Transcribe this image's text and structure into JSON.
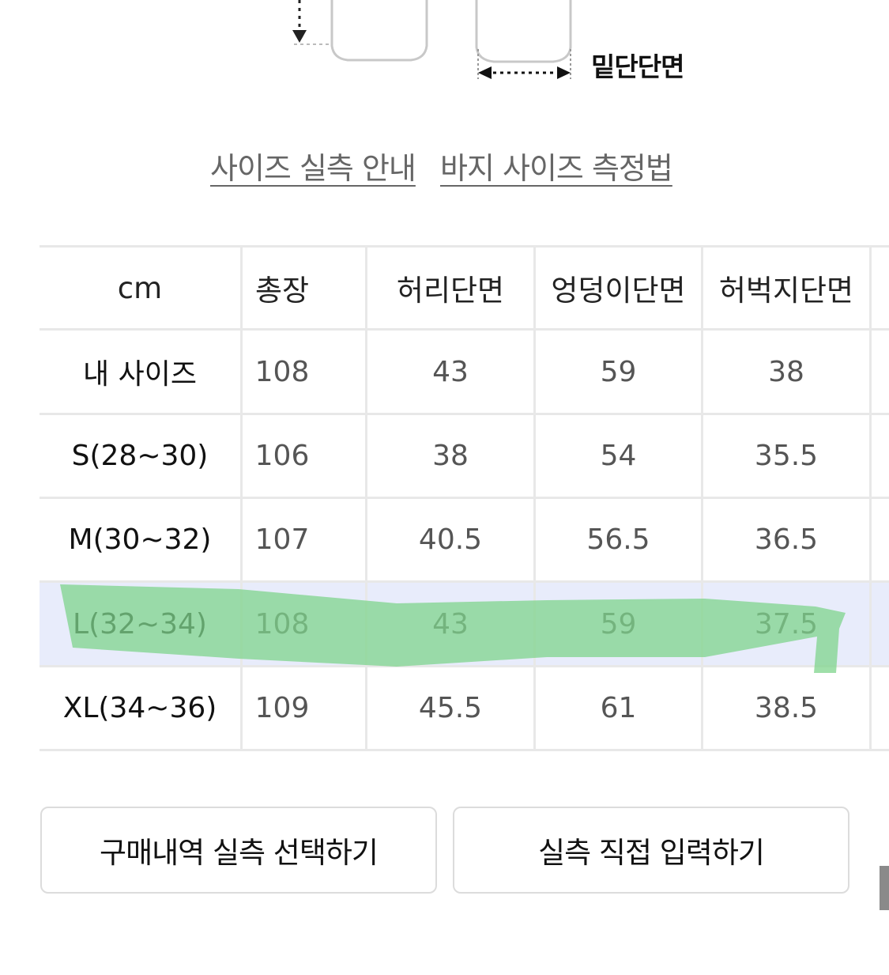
{
  "illustration": {
    "hem_label": "밑단단면"
  },
  "links": {
    "size_guide": "사이즈 실측 안내",
    "measure_method": "바지 사이즈 측정법"
  },
  "size_table": {
    "headers": [
      "cm",
      "총장",
      "허리단면",
      "엉덩이단면",
      "허벅지단면"
    ],
    "rows": [
      {
        "label": "내 사이즈",
        "values": [
          "108",
          "43",
          "59",
          "38"
        ]
      },
      {
        "label": "S(28~30)",
        "values": [
          "106",
          "38",
          "54",
          "35.5"
        ]
      },
      {
        "label": "M(30~32)",
        "values": [
          "107",
          "40.5",
          "56.5",
          "36.5"
        ]
      },
      {
        "label": "L(32~34)",
        "values": [
          "108",
          "43",
          "59",
          "37.5"
        ]
      },
      {
        "label": "XL(34~36)",
        "values": [
          "109",
          "45.5",
          "61",
          "38.5"
        ]
      }
    ],
    "highlight_color": "#e8ecfb",
    "marker_color": "#7fd48c"
  },
  "buttons": {
    "purchase_history": "구매내역 실측 선택하기",
    "direct_input": "실측 직접 입력하기"
  }
}
